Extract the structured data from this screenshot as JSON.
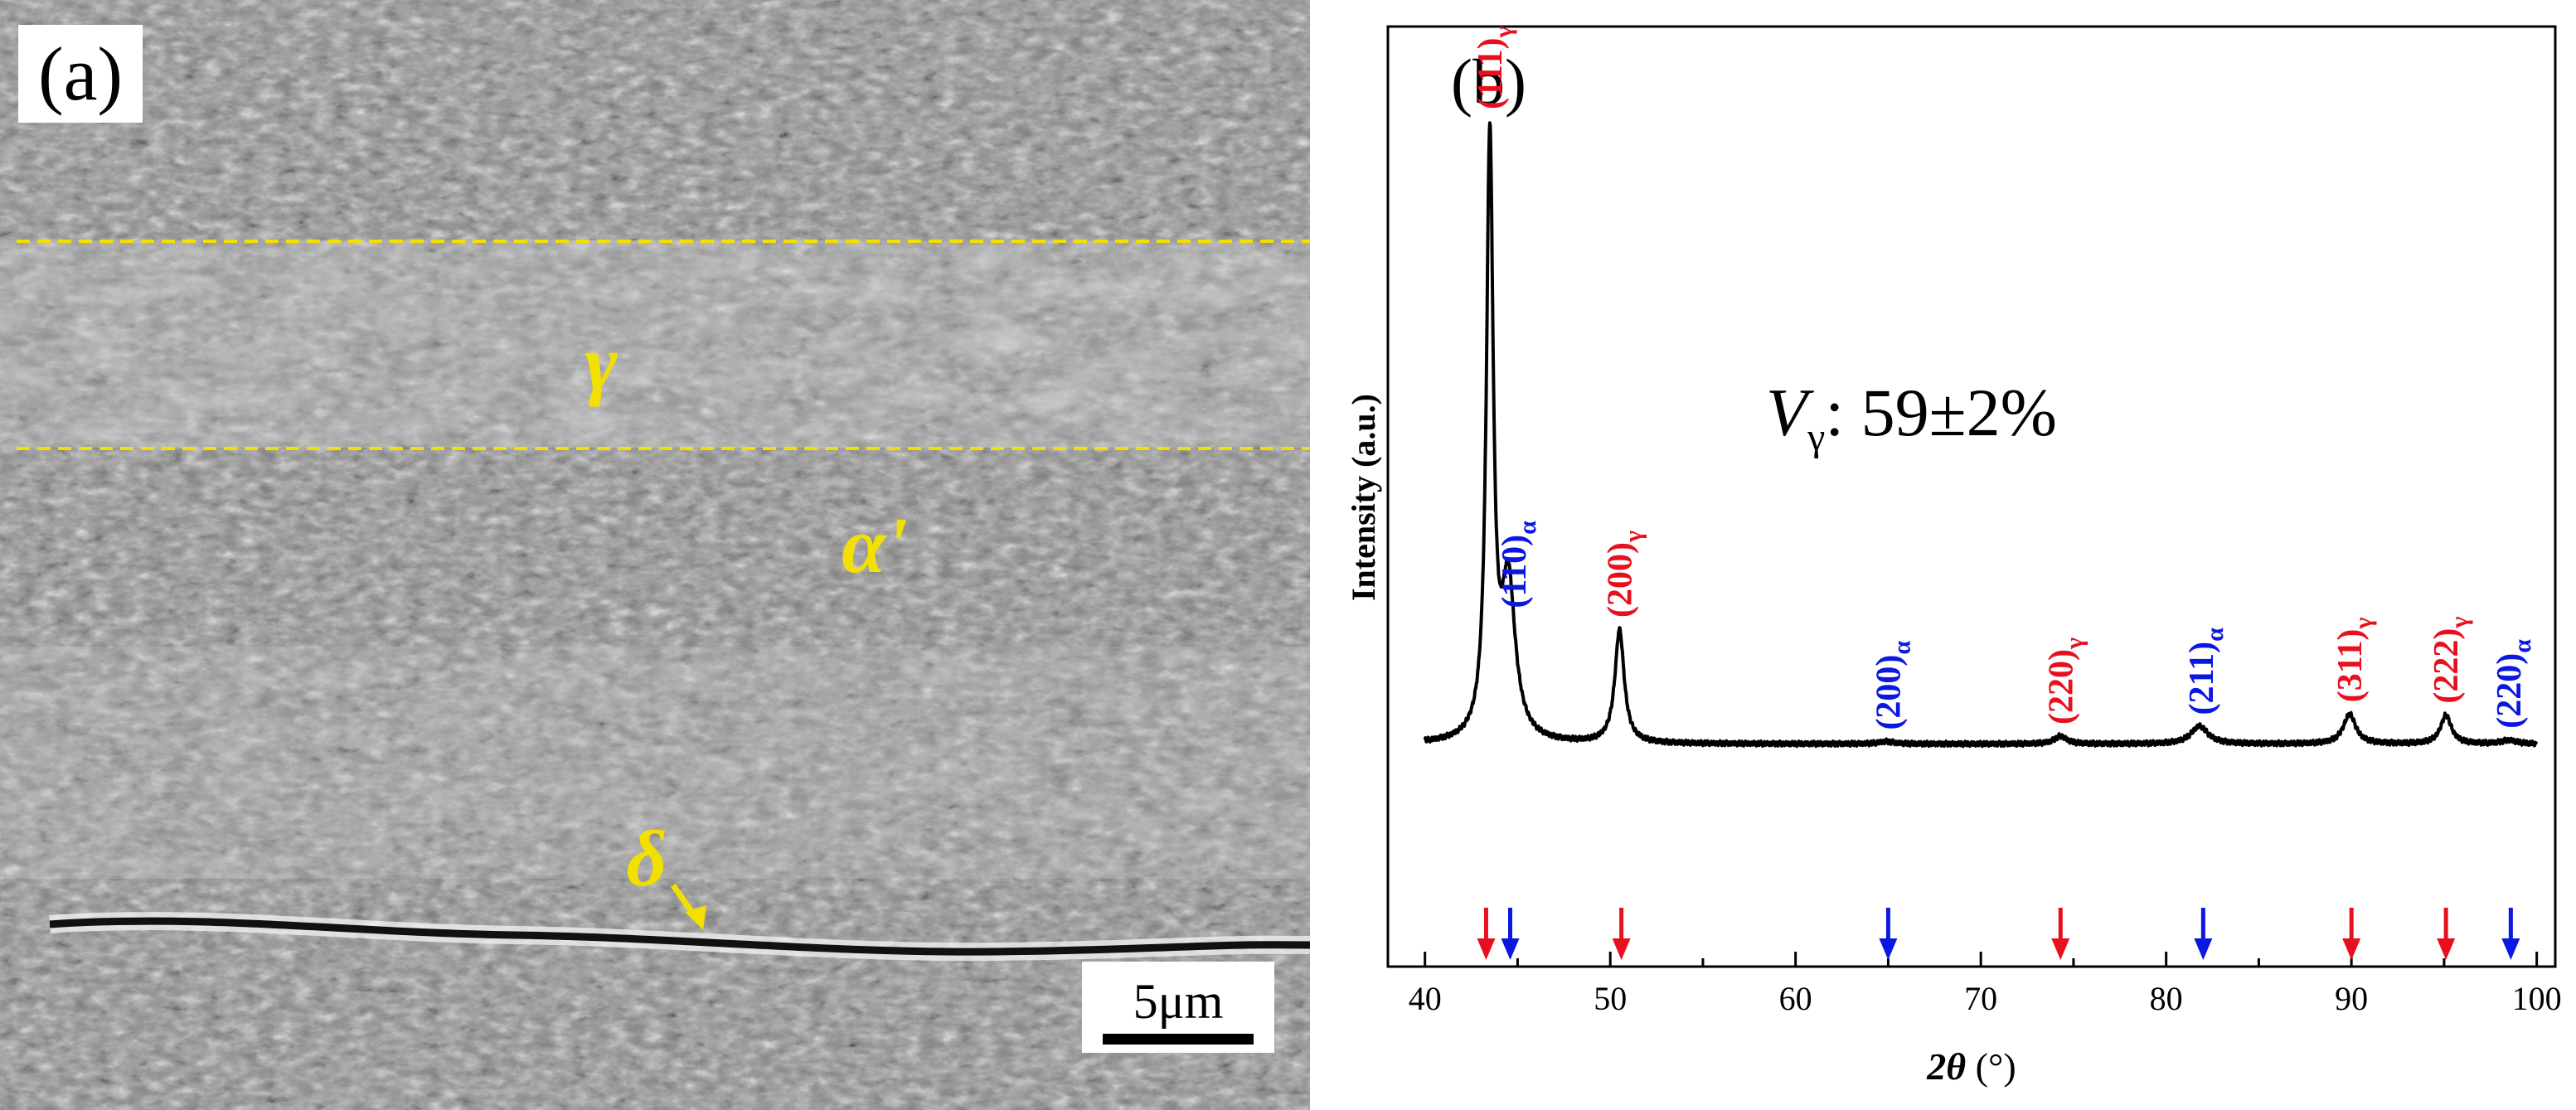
{
  "panel_a": {
    "label": "(a)",
    "phase_gamma": "γ",
    "phase_alpha_prime": "α'",
    "phase_delta": "δ",
    "scale_bar": "5μm",
    "colors": {
      "annotation": "#f2e000",
      "boundary": "#f2e000"
    }
  },
  "chart_data": {
    "type": "line",
    "panel_label": "(b)",
    "title": "",
    "xlabel_symbol": "2θ",
    "xlabel_unit": " (°)",
    "ylabel": "Intensity (a.u.)",
    "xlim": [
      38,
      101
    ],
    "ylim": [
      0,
      1
    ],
    "x_ticks": [
      "40",
      "50",
      "60",
      "70",
      "80",
      "90",
      "100"
    ],
    "x_tick_values": [
      40,
      50,
      60,
      70,
      80,
      90,
      100
    ],
    "annotation": {
      "main": "V",
      "sub": "γ",
      "rest": ": 59±2%"
    },
    "series": [
      {
        "name": "XRD pattern",
        "color": "#000000",
        "baseline": 0.17,
        "peaks": [
          {
            "x": 43.5,
            "height": 1.0,
            "width": 0.22
          },
          {
            "x": 44.5,
            "height": 0.26,
            "width": 0.45
          },
          {
            "x": 50.5,
            "height": 0.19,
            "width": 0.3
          },
          {
            "x": 64.9,
            "height": 0.004,
            "width": 0.5
          },
          {
            "x": 74.3,
            "height": 0.013,
            "width": 0.4
          },
          {
            "x": 81.8,
            "height": 0.03,
            "width": 0.55
          },
          {
            "x": 89.9,
            "height": 0.05,
            "width": 0.4
          },
          {
            "x": 95.1,
            "height": 0.048,
            "width": 0.35
          },
          {
            "x": 98.5,
            "height": 0.006,
            "width": 0.5
          }
        ]
      }
    ],
    "peak_labels": [
      {
        "hkl": "(111)",
        "phase": "γ",
        "x": 43.5,
        "color": "#e8101e"
      },
      {
        "hkl": "(110)",
        "phase": "α",
        "x": 44.8,
        "color": "#0b18e0"
      },
      {
        "hkl": "(200)",
        "phase": "γ",
        "x": 50.5,
        "color": "#e8101e"
      },
      {
        "hkl": "(200)",
        "phase": "α",
        "x": 65.0,
        "color": "#0b18e0"
      },
      {
        "hkl": "(220)",
        "phase": "γ",
        "x": 74.3,
        "color": "#e8101e"
      },
      {
        "hkl": "(211)",
        "phase": "α",
        "x": 81.9,
        "color": "#0b18e0"
      },
      {
        "hkl": "(311)",
        "phase": "γ",
        "x": 89.9,
        "color": "#e8101e"
      },
      {
        "hkl": "(222)",
        "phase": "γ",
        "x": 95.1,
        "color": "#e8101e"
      },
      {
        "hkl": "(220)",
        "phase": "α",
        "x": 98.5,
        "color": "#0b18e0"
      }
    ],
    "reference_arrows": [
      {
        "x": 43.3,
        "phase": "γ",
        "color": "#e8101e"
      },
      {
        "x": 44.6,
        "phase": "α",
        "color": "#0b18e0"
      },
      {
        "x": 50.6,
        "phase": "γ",
        "color": "#e8101e"
      },
      {
        "x": 65.0,
        "phase": "α",
        "color": "#0b18e0"
      },
      {
        "x": 74.3,
        "phase": "γ",
        "color": "#e8101e"
      },
      {
        "x": 82.0,
        "phase": "α",
        "color": "#0b18e0"
      },
      {
        "x": 90.0,
        "phase": "γ",
        "color": "#e8101e"
      },
      {
        "x": 95.1,
        "phase": "γ",
        "color": "#e8101e"
      },
      {
        "x": 98.6,
        "phase": "α",
        "color": "#0b18e0"
      }
    ]
  }
}
